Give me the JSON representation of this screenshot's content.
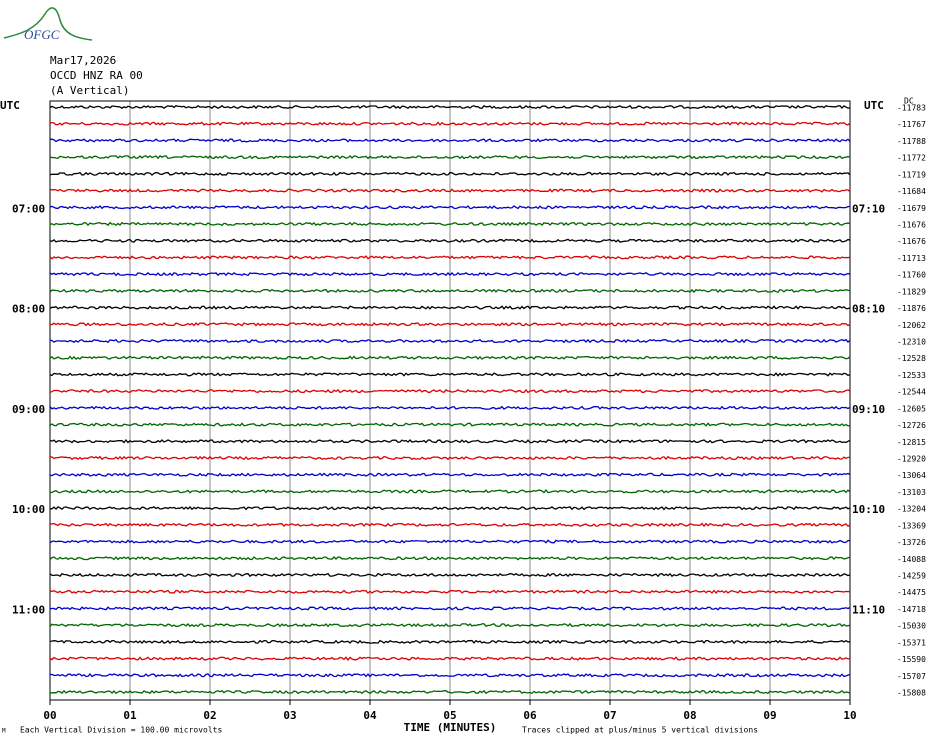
{
  "header": {
    "logo": "OFGC",
    "date": "Mar17,2026",
    "station": "OCCD HNZ RA 00",
    "component": "(A Vertical)"
  },
  "plot": {
    "left_top": "UTC",
    "right_top": "UTC",
    "dc": "DC",
    "colors": [
      "#000000",
      "#dd0000",
      "#0000cc",
      "#006600"
    ],
    "xticks": [
      "00",
      "01",
      "02",
      "03",
      "04",
      "05",
      "06",
      "07",
      "08",
      "09",
      "10"
    ],
    "xlabel": "TIME (MINUTES)",
    "left_labels": [
      null,
      null,
      null,
      null,
      null,
      null,
      "07:00",
      null,
      null,
      null,
      null,
      null,
      "08:00",
      null,
      null,
      null,
      null,
      null,
      "09:00",
      null,
      null,
      null,
      null,
      null,
      "10:00",
      null,
      null,
      null,
      null,
      null,
      "11:00",
      null,
      null,
      null,
      null,
      null
    ],
    "right_labels": [
      null,
      null,
      null,
      null,
      null,
      null,
      "07:10",
      null,
      null,
      null,
      null,
      null,
      "08:10",
      null,
      null,
      null,
      null,
      null,
      "09:10",
      null,
      null,
      null,
      null,
      null,
      "10:10",
      null,
      null,
      null,
      null,
      null,
      "11:10",
      null,
      null,
      null,
      null,
      null
    ],
    "offsets": [
      -11783,
      -11767,
      -11788,
      -11772,
      -11719,
      -11684,
      -11679,
      -11676,
      -11676,
      -11713,
      -11760,
      -11829,
      -11876,
      -12062,
      -12310,
      -12528,
      -12533,
      -12544,
      -12605,
      -12726,
      -12815,
      -12920,
      -13064,
      -13103,
      -13204,
      -13369,
      -13726,
      -14088,
      -14259,
      -14475,
      -14718,
      -15030,
      -15371,
      -15590,
      -15707,
      -15808
    ]
  },
  "footer": {
    "mark": "M",
    "scale": "Each Vertical Division =  100.00 microvolts",
    "clip": "Traces clipped at plus/minus 5 vertical divisions"
  }
}
